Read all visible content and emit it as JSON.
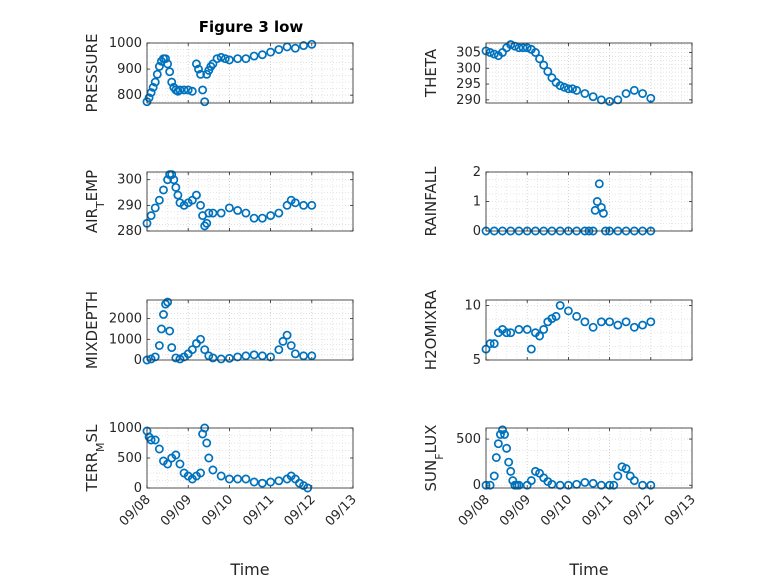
{
  "figure": {
    "title": "Figure 3 low",
    "marker_color": "#0072BD"
  },
  "chart_data": [
    {
      "type": "scatter",
      "ylabel": "PRESSURE",
      "xlabel": "",
      "title": "Figure 3 low",
      "ylim": [
        770,
        1000
      ],
      "yticks": [
        800,
        900,
        1000
      ],
      "grid": true,
      "x": [
        0.0,
        0.05,
        0.1,
        0.15,
        0.2,
        0.25,
        0.3,
        0.35,
        0.4,
        0.45,
        0.5,
        0.55,
        0.6,
        0.65,
        0.7,
        0.75,
        0.8,
        0.9,
        1.0,
        1.1,
        1.2,
        1.25,
        1.3,
        1.35,
        1.4,
        1.45,
        1.5,
        1.55,
        1.6,
        1.7,
        1.8,
        1.9,
        2.0,
        2.2,
        2.4,
        2.6,
        2.8,
        3.0,
        3.2,
        3.4,
        3.6,
        3.8,
        4.0
      ],
      "y": [
        775,
        790,
        810,
        830,
        850,
        880,
        910,
        930,
        940,
        940,
        920,
        890,
        850,
        830,
        820,
        815,
        820,
        820,
        820,
        815,
        920,
        900,
        880,
        820,
        775,
        880,
        895,
        910,
        920,
        940,
        945,
        940,
        935,
        940,
        940,
        950,
        955,
        965,
        975,
        985,
        980,
        990,
        995
      ]
    },
    {
      "type": "scatter",
      "ylabel": "THETA",
      "xlabel": "",
      "ylim": [
        289,
        308
      ],
      "yticks": [
        290,
        295,
        300,
        305
      ],
      "grid": true,
      "x": [
        0.0,
        0.1,
        0.2,
        0.3,
        0.4,
        0.5,
        0.6,
        0.7,
        0.8,
        0.9,
        1.0,
        1.1,
        1.2,
        1.3,
        1.4,
        1.5,
        1.6,
        1.7,
        1.8,
        1.9,
        2.0,
        2.1,
        2.2,
        2.4,
        2.6,
        2.8,
        3.0,
        3.2,
        3.4,
        3.6,
        3.8,
        4.0
      ],
      "y": [
        305.5,
        305,
        304.5,
        304,
        305,
        306.5,
        307.5,
        307,
        306.5,
        306.5,
        306.5,
        306,
        305,
        303,
        301,
        299,
        297,
        295.5,
        294.5,
        294,
        293.5,
        293.5,
        293,
        292,
        291,
        290,
        289.5,
        290,
        292,
        293,
        292,
        290.5
      ]
    },
    {
      "type": "scatter",
      "ylabel": "AIR_TEMP",
      "xlabel": "",
      "ylim": [
        280,
        303
      ],
      "yticks": [
        280,
        290,
        300
      ],
      "grid": true,
      "x": [
        0.0,
        0.1,
        0.2,
        0.3,
        0.4,
        0.5,
        0.55,
        0.6,
        0.65,
        0.7,
        0.75,
        0.8,
        0.9,
        1.0,
        1.1,
        1.2,
        1.3,
        1.35,
        1.4,
        1.45,
        1.5,
        1.6,
        1.8,
        2.0,
        2.2,
        2.4,
        2.6,
        2.8,
        3.0,
        3.2,
        3.4,
        3.5,
        3.6,
        3.8,
        4.0
      ],
      "y": [
        283,
        286,
        289,
        292,
        296,
        300,
        302,
        302,
        300,
        297,
        294,
        291,
        290,
        291,
        292,
        294,
        290,
        286,
        282,
        283,
        287,
        287,
        287,
        289,
        288,
        287,
        285,
        285,
        286,
        287,
        290,
        292,
        291,
        290,
        290
      ]
    },
    {
      "type": "scatter",
      "ylabel": "RAINFALL",
      "xlabel": "",
      "ylim": [
        0,
        2
      ],
      "yticks": [
        0,
        1,
        2
      ],
      "grid": true,
      "x": [
        0.0,
        0.2,
        0.4,
        0.6,
        0.8,
        1.0,
        1.2,
        1.4,
        1.6,
        1.8,
        2.0,
        2.2,
        2.4,
        2.5,
        2.6,
        2.65,
        2.7,
        2.75,
        2.8,
        2.85,
        2.9,
        3.0,
        3.2,
        3.4,
        3.6,
        3.8,
        4.0
      ],
      "y": [
        0,
        0,
        0,
        0,
        0,
        0,
        0,
        0,
        0,
        0,
        0,
        0,
        0,
        0,
        0,
        0.7,
        1.0,
        1.6,
        0.8,
        0.6,
        0,
        0,
        0,
        0,
        0,
        0,
        0
      ]
    },
    {
      "type": "scatter",
      "ylabel": "MIXDEPTH",
      "xlabel": "",
      "ylim": [
        0,
        2900
      ],
      "yticks": [
        0,
        1000,
        2000
      ],
      "grid": true,
      "x": [
        0.0,
        0.1,
        0.2,
        0.3,
        0.35,
        0.4,
        0.45,
        0.5,
        0.55,
        0.6,
        0.7,
        0.8,
        0.9,
        1.0,
        1.1,
        1.2,
        1.3,
        1.4,
        1.5,
        1.6,
        1.8,
        2.0,
        2.2,
        2.4,
        2.6,
        2.8,
        3.0,
        3.2,
        3.3,
        3.4,
        3.5,
        3.6,
        3.8,
        4.0
      ],
      "y": [
        0,
        50,
        150,
        700,
        1500,
        2200,
        2700,
        2800,
        1400,
        600,
        100,
        50,
        150,
        300,
        500,
        800,
        1000,
        500,
        200,
        100,
        50,
        80,
        150,
        200,
        250,
        200,
        150,
        500,
        900,
        1200,
        700,
        300,
        200,
        200
      ]
    },
    {
      "type": "scatter",
      "ylabel": "H2OMIXRA",
      "xlabel": "",
      "ylim": [
        5,
        10.5
      ],
      "yticks": [
        5,
        10
      ],
      "grid": true,
      "x": [
        0.0,
        0.1,
        0.2,
        0.3,
        0.4,
        0.5,
        0.6,
        0.8,
        1.0,
        1.1,
        1.2,
        1.3,
        1.4,
        1.5,
        1.6,
        1.7,
        1.8,
        2.0,
        2.2,
        2.4,
        2.6,
        2.8,
        3.0,
        3.2,
        3.4,
        3.6,
        3.8,
        4.0
      ],
      "y": [
        6,
        6.5,
        6.5,
        7.5,
        7.8,
        7.5,
        7.5,
        7.8,
        7.8,
        6,
        7.5,
        7.2,
        7.8,
        8.5,
        8.8,
        9,
        10,
        9.5,
        9,
        8.5,
        8,
        8.5,
        8.5,
        8.2,
        8.5,
        8,
        8.2,
        8.5
      ]
    },
    {
      "type": "scatter",
      "ylabel": "TERR_MSL",
      "xlabel": "Time",
      "ylim": [
        0,
        1000
      ],
      "yticks": [
        0,
        500,
        1000
      ],
      "grid": true,
      "x": [
        0.0,
        0.05,
        0.1,
        0.2,
        0.3,
        0.4,
        0.5,
        0.6,
        0.7,
        0.8,
        0.9,
        1.0,
        1.1,
        1.2,
        1.3,
        1.35,
        1.4,
        1.45,
        1.5,
        1.6,
        1.8,
        2.0,
        2.2,
        2.4,
        2.6,
        2.8,
        3.0,
        3.2,
        3.4,
        3.5,
        3.6,
        3.7,
        3.8,
        3.9
      ],
      "y": [
        950,
        850,
        800,
        800,
        650,
        450,
        400,
        500,
        550,
        400,
        250,
        200,
        150,
        200,
        250,
        900,
        1000,
        750,
        500,
        300,
        200,
        150,
        150,
        150,
        100,
        80,
        100,
        120,
        150,
        200,
        150,
        80,
        40,
        0
      ]
    },
    {
      "type": "scatter",
      "ylabel": "SUN_FLUX",
      "xlabel": "Time",
      "ylim": [
        -30,
        620
      ],
      "yticks": [
        0,
        500
      ],
      "grid": true,
      "xticklabels": [
        "09/08",
        "09/09",
        "09/10",
        "09/11",
        "09/12",
        "09/13"
      ],
      "x": [
        0.0,
        0.1,
        0.2,
        0.25,
        0.3,
        0.35,
        0.4,
        0.45,
        0.5,
        0.55,
        0.6,
        0.65,
        0.7,
        0.75,
        0.8,
        1.0,
        1.1,
        1.2,
        1.3,
        1.4,
        1.5,
        1.6,
        1.8,
        2.0,
        2.2,
        2.4,
        2.6,
        2.8,
        3.0,
        3.1,
        3.2,
        3.3,
        3.4,
        3.5,
        3.6,
        3.8,
        4.0
      ],
      "y": [
        0,
        0,
        100,
        300,
        450,
        550,
        600,
        550,
        400,
        250,
        150,
        50,
        0,
        0,
        0,
        0,
        50,
        150,
        130,
        80,
        40,
        10,
        0,
        0,
        10,
        30,
        20,
        0,
        0,
        0,
        100,
        200,
        180,
        100,
        50,
        0,
        0
      ]
    }
  ]
}
